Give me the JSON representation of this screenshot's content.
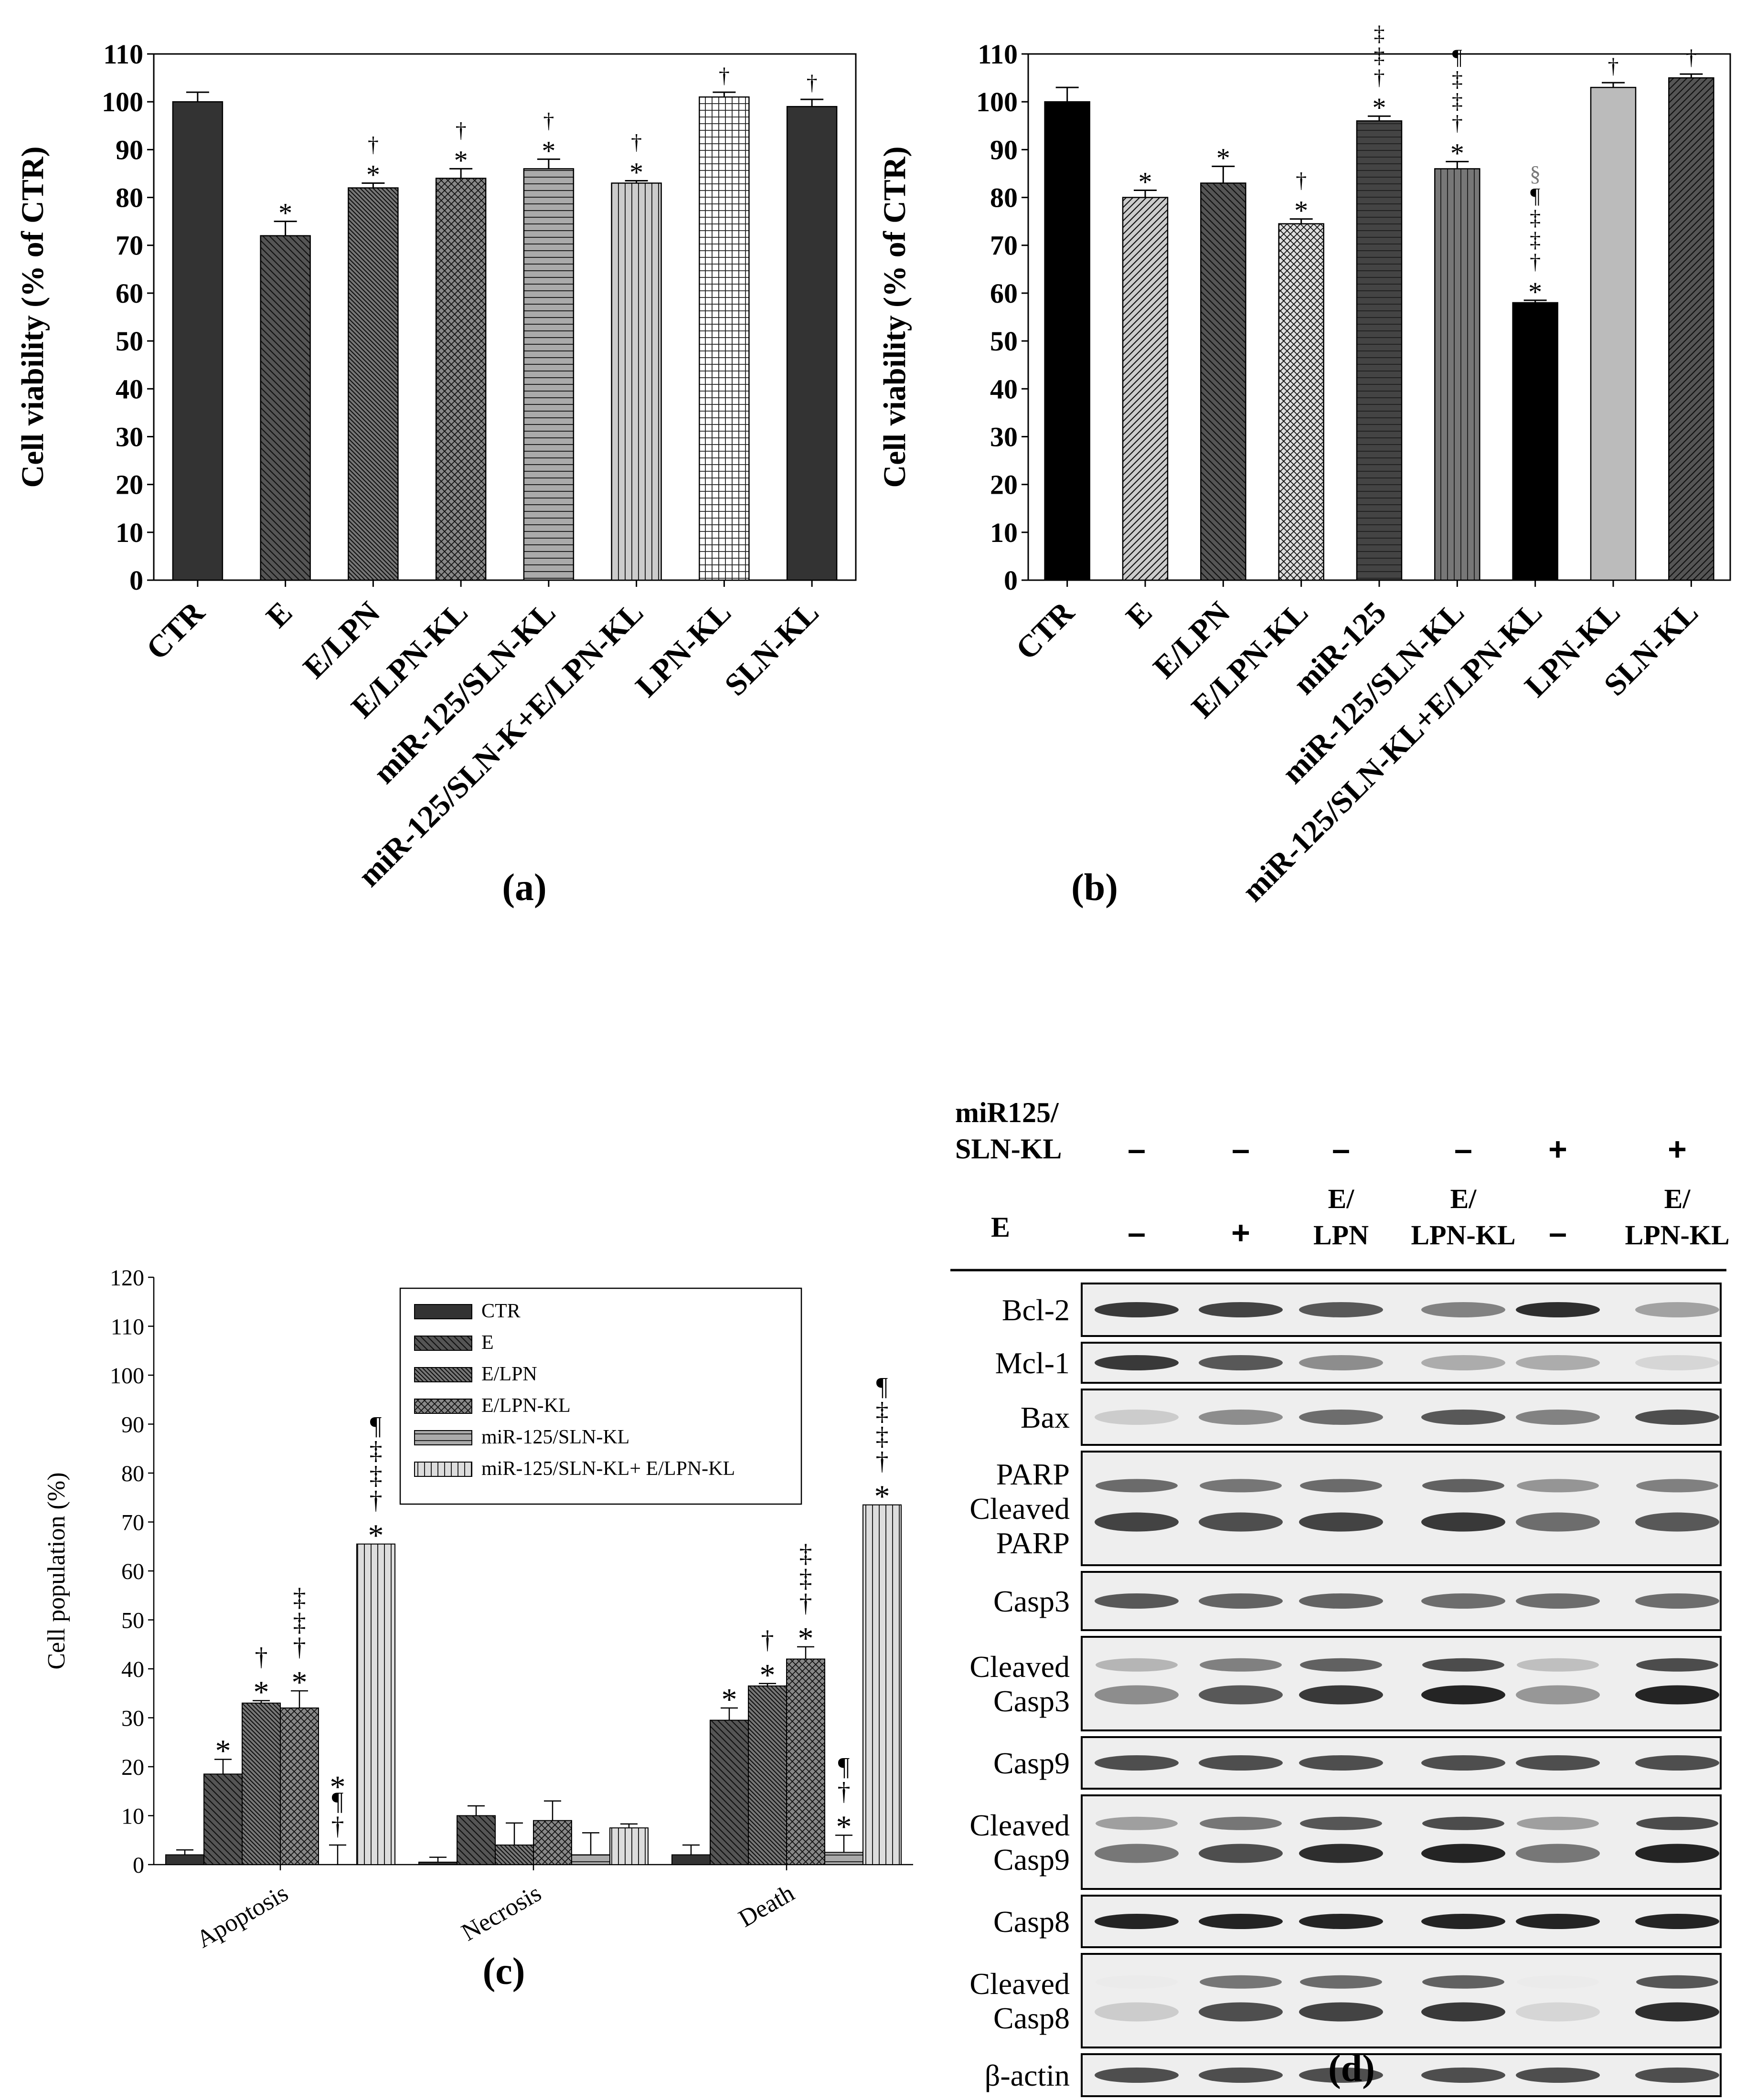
{
  "chart_data": [
    {
      "panel_label": "(a)",
      "type": "bar",
      "ylabel": "Cell viability (% of CTR)",
      "ylim": [
        0,
        110
      ],
      "yticks": [
        0,
        10,
        20,
        30,
        40,
        50,
        60,
        70,
        80,
        90,
        100,
        110
      ],
      "categories": [
        "CTR",
        "E",
        "E/LPN",
        "E/LPN-KL",
        "miR-125/SLN-KL",
        "miR-125/SLN-K+E/LPN-KL",
        "LPN-KL",
        "SLN-KL"
      ],
      "values": [
        100,
        72,
        82,
        84,
        86,
        83,
        101,
        99
      ],
      "errors": [
        2,
        3,
        1,
        2,
        2,
        0.5,
        1,
        1.5
      ],
      "annotations": [
        "",
        "*",
        "*\n†",
        "*\n†",
        "*\n†",
        "*\n†",
        "†",
        "†"
      ],
      "colors": [
        "#333333",
        "#555555",
        "#777777",
        "#888888",
        "#aaaaaa",
        "#cccccc",
        "#ffffff",
        "#333333"
      ],
      "patterns": [
        "solid",
        "diag-back",
        "diag-back-dense",
        "crosshatch",
        "horizontal",
        "vertical",
        "grid",
        "solid"
      ]
    },
    {
      "panel_label": "(b)",
      "type": "bar",
      "ylabel": "Cell viability (% of CTR)",
      "ylim": [
        0,
        110
      ],
      "yticks": [
        0,
        10,
        20,
        30,
        40,
        50,
        60,
        70,
        80,
        90,
        100,
        110
      ],
      "categories": [
        "CTR",
        "E",
        "E/LPN",
        "E/LPN-KL",
        "miR-125",
        "miR-125/SLN-KL",
        "miR-125/SLN-KL+E/LPN-KL",
        "LPN-KL",
        "SLN-KL"
      ],
      "values": [
        100,
        80,
        83,
        74.5,
        96,
        86,
        58,
        103,
        105
      ],
      "errors": [
        3,
        1.5,
        3.5,
        1,
        1,
        1.5,
        0.5,
        1,
        0.8
      ],
      "annotations": [
        "",
        "*",
        "*",
        "*\n†",
        "*\n†\n‡\n‡",
        "*\n†\n‡\n‡\n¶",
        "*\n†\n‡\n‡\n¶\n§",
        "†",
        "†"
      ],
      "colors": [
        "#000000",
        "#cccccc",
        "#555555",
        "#dddddd",
        "#444444",
        "#777777",
        "#000000",
        "#bbbbbb",
        "#555555"
      ],
      "patterns": [
        "solid",
        "diag-fwd",
        "diag-back",
        "crosshatch",
        "horizontal",
        "vertical",
        "solid",
        "solid",
        "diag-fwd"
      ]
    },
    {
      "panel_label": "(c)",
      "type": "bar",
      "ylabel": "Cell population (%)",
      "ylim": [
        0,
        120
      ],
      "yticks": [
        0,
        10,
        20,
        30,
        40,
        50,
        60,
        70,
        80,
        90,
        100,
        110,
        120
      ],
      "categories": [
        "Apoptosis",
        "Necrosis",
        "Death"
      ],
      "series": [
        {
          "name": "CTR",
          "values": [
            2,
            0.5,
            2
          ],
          "errors": [
            1,
            1,
            2
          ]
        },
        {
          "name": "E",
          "values": [
            18.5,
            10,
            29.5
          ],
          "errors": [
            3,
            2,
            2.5
          ]
        },
        {
          "name": "E/LPN",
          "values": [
            33,
            4,
            36.5
          ],
          "errors": [
            0.5,
            4.5,
            0.5
          ]
        },
        {
          "name": "E/LPN-KL",
          "values": [
            32,
            9,
            42
          ],
          "errors": [
            3.5,
            4,
            2.5
          ]
        },
        {
          "name": "miR-125/SLN-KL",
          "values": [
            0,
            2,
            2.5
          ],
          "errors": [
            4,
            4.5,
            3.5
          ]
        },
        {
          "name": "miR-125/SLN-KL+ E/LPN-KL",
          "values": [
            65.5,
            7.5,
            73.5
          ],
          "errors": [
            0,
            0.8,
            0
          ]
        }
      ],
      "annotations": {
        "Apoptosis": [
          "",
          "*",
          "*\n†",
          "*\n†\n‡\n‡",
          "†\n¶\n*",
          "*\n†\n‡\n‡\n¶"
        ],
        "Necrosis": [
          "",
          "",
          "",
          "",
          "",
          ""
        ],
        "Death": [
          "",
          "*",
          "*\n†",
          "*\n†\n‡\n‡",
          "*\n†\n¶",
          "*\n†\n‡\n‡\n¶"
        ]
      },
      "legend_position": "top-right"
    }
  ],
  "western_blot": {
    "panel_label": "(d)",
    "row_headers": {
      "mir": "miR125/\nSLN-KL",
      "e": "E"
    },
    "mir_values": [
      "–",
      "–",
      "–",
      "–",
      "+",
      "+"
    ],
    "e_values": [
      "–",
      "+",
      "E/\nLPN",
      "E/\nLPN-KL",
      "–",
      "E/\nLPN-KL"
    ],
    "bands": [
      {
        "label": "Bcl-2",
        "intensity": [
          0.85,
          0.8,
          0.7,
          0.5,
          0.9,
          0.35
        ]
      },
      {
        "label": "Mcl-1",
        "intensity": [
          0.85,
          0.7,
          0.45,
          0.3,
          0.3,
          0.1
        ]
      },
      {
        "label": "Bax",
        "intensity": [
          0.15,
          0.45,
          0.6,
          0.7,
          0.5,
          0.75
        ]
      },
      {
        "label": "PARP\nCleaved\nPARP",
        "intensity": [
          0.8,
          0.75,
          0.8,
          0.85,
          0.6,
          0.7
        ]
      },
      {
        "label": "Casp3",
        "intensity": [
          0.7,
          0.65,
          0.65,
          0.6,
          0.6,
          0.6
        ]
      },
      {
        "label": "Cleaved\nCasp3",
        "intensity": [
          0.45,
          0.7,
          0.85,
          0.95,
          0.4,
          0.95
        ]
      },
      {
        "label": "Casp9",
        "intensity": [
          0.75,
          0.75,
          0.75,
          0.75,
          0.75,
          0.75
        ]
      },
      {
        "label": "Cleaved\nCasp9",
        "intensity": [
          0.55,
          0.75,
          0.9,
          0.95,
          0.55,
          0.95
        ]
      },
      {
        "label": "Casp8",
        "intensity": [
          0.95,
          0.95,
          0.95,
          0.95,
          0.95,
          0.95
        ]
      },
      {
        "label": "Cleaved\nCasp8",
        "intensity": [
          0.15,
          0.75,
          0.8,
          0.85,
          0.1,
          0.9
        ]
      },
      {
        "label": "β-actin",
        "intensity": [
          0.75,
          0.75,
          0.75,
          0.75,
          0.75,
          0.75
        ]
      }
    ]
  }
}
